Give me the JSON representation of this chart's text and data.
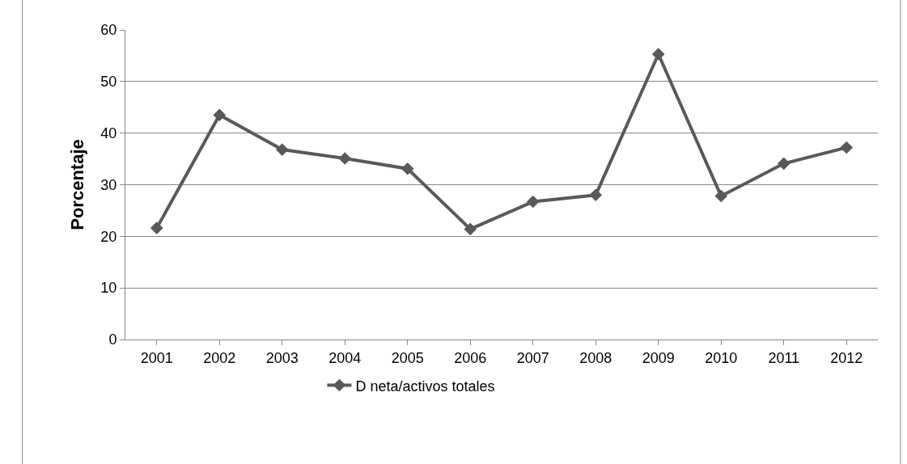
{
  "chart_data": {
    "type": "line",
    "ylabel": "Porcentaje",
    "categories": [
      "2001",
      "2002",
      "2003",
      "2004",
      "2005",
      "2006",
      "2007",
      "2008",
      "2009",
      "2010",
      "2011",
      "2012"
    ],
    "series": [
      {
        "name": "D neta/activos totales",
        "color": "#595959",
        "values": [
          21.6,
          43.5,
          36.8,
          35.1,
          33.1,
          21.4,
          26.7,
          28.0,
          55.3,
          27.8,
          34.1,
          37.2
        ]
      }
    ],
    "ylim": [
      0,
      60
    ],
    "yticks": [
      0,
      10,
      20,
      30,
      40,
      50,
      60
    ],
    "grid": "y",
    "legend": "bottom",
    "marker": "diamond",
    "line_style": "solid"
  }
}
